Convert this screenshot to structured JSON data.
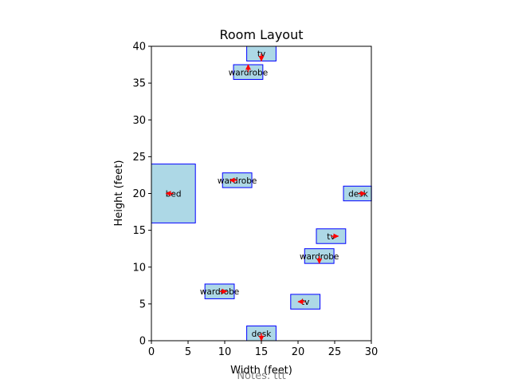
{
  "chart_data": {
    "type": "floorplan",
    "title": "Room Layout",
    "xlabel": "Width (feet)",
    "ylabel": "Height (feet)",
    "xlim": [
      0,
      30
    ],
    "ylim": [
      0,
      40
    ],
    "xticks": [
      0,
      5,
      10,
      15,
      20,
      25,
      30
    ],
    "yticks": [
      0,
      5,
      10,
      15,
      20,
      25,
      30,
      35,
      40
    ],
    "grid": false,
    "notes": "Notes: ttt",
    "colors": {
      "fill": "#add8e6",
      "edge": "#0000ff",
      "arrow": "#ff0000"
    },
    "items": [
      {
        "name": "tv",
        "x": 13,
        "y": 38,
        "w": 4,
        "h": 2,
        "dir": [
          0,
          -1
        ]
      },
      {
        "name": "wardrobe",
        "x": 11.2,
        "y": 35.5,
        "w": 4,
        "h": 2,
        "dir": [
          0,
          1
        ]
      },
      {
        "name": "bed",
        "x": 0,
        "y": 16,
        "w": 6,
        "h": 8,
        "dir": [
          -1,
          0
        ]
      },
      {
        "name": "wardrobe",
        "x": 9.7,
        "y": 20.8,
        "w": 4,
        "h": 2,
        "dir": [
          -1,
          0
        ]
      },
      {
        "name": "desk",
        "x": 26.2,
        "y": 19,
        "w": 4,
        "h": 2,
        "dir": [
          1,
          0
        ]
      },
      {
        "name": "tv",
        "x": 22.5,
        "y": 13.2,
        "w": 4,
        "h": 2,
        "dir": [
          1,
          0
        ]
      },
      {
        "name": "wardrobe",
        "x": 20.9,
        "y": 10.5,
        "w": 4,
        "h": 2,
        "dir": [
          0,
          -1
        ]
      },
      {
        "name": "wardrobe",
        "x": 7.3,
        "y": 5.7,
        "w": 4,
        "h": 2,
        "dir": [
          1,
          0
        ]
      },
      {
        "name": "tv",
        "x": 19,
        "y": 4.3,
        "w": 4,
        "h": 2,
        "dir": [
          -1,
          0
        ]
      },
      {
        "name": "desk",
        "x": 13,
        "y": 0,
        "w": 4,
        "h": 2,
        "dir": [
          0,
          -1
        ]
      }
    ]
  }
}
